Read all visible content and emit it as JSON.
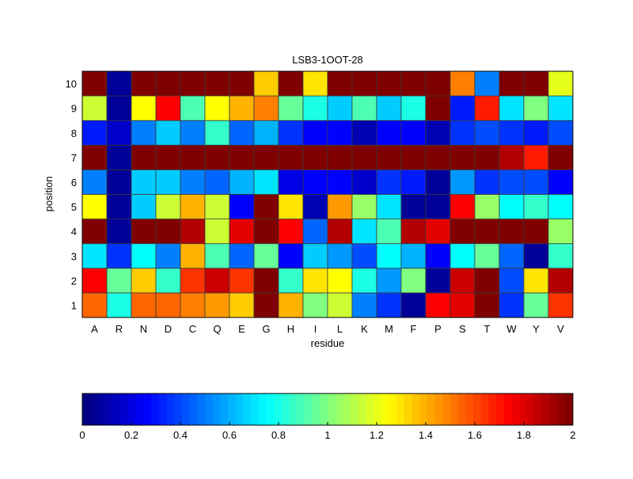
{
  "chart_data": {
    "type": "heatmap",
    "title": "LSB3-1OOT-28",
    "xlabel": "residue",
    "ylabel": "position",
    "colormap": "jet",
    "clim": [
      0,
      2
    ],
    "x_categories": [
      "A",
      "R",
      "N",
      "D",
      "C",
      "Q",
      "E",
      "G",
      "H",
      "I",
      "L",
      "K",
      "M",
      "F",
      "P",
      "S",
      "T",
      "W",
      "Y",
      "V"
    ],
    "y_categories": [
      "1",
      "2",
      "3",
      "4",
      "5",
      "6",
      "7",
      "8",
      "9",
      "10"
    ],
    "values": [
      [
        1.55,
        0.8,
        1.55,
        1.55,
        1.5,
        1.45,
        1.35,
        2,
        1.4,
        1.0,
        1.15,
        0.5,
        0.35,
        0.05,
        1.75,
        1.8,
        2,
        0.35,
        0.95,
        1.65
      ],
      [
        1.75,
        0.95,
        1.35,
        0.85,
        1.65,
        1.85,
        1.65,
        2,
        0.85,
        1.3,
        1.25,
        0.8,
        0.55,
        1.0,
        0.05,
        1.85,
        2,
        0.4,
        1.3,
        1.9
      ],
      [
        0.7,
        0.35,
        0.75,
        0.5,
        1.4,
        0.9,
        0.45,
        0.95,
        0.25,
        0.65,
        0.55,
        0.4,
        0.75,
        0.6,
        0.25,
        0.75,
        0.95,
        0.45,
        0.05,
        0.85
      ],
      [
        2,
        0.05,
        2,
        2,
        1.9,
        1.15,
        1.8,
        2,
        1.75,
        0.45,
        1.9,
        0.7,
        0.9,
        1.9,
        1.8,
        2,
        2,
        2,
        2,
        1.05
      ],
      [
        1.25,
        0.05,
        0.65,
        1.15,
        1.4,
        1.15,
        0.25,
        2,
        1.3,
        0.1,
        1.45,
        1.05,
        0.7,
        0.05,
        0.05,
        1.75,
        1.05,
        0.75,
        0.85,
        0.75
      ],
      [
        0.5,
        0.05,
        0.65,
        0.65,
        0.5,
        0.45,
        0.6,
        0.7,
        0.2,
        0.25,
        0.25,
        0.15,
        0.35,
        0.3,
        0.05,
        0.55,
        0.35,
        0.4,
        0.4,
        0.25
      ],
      [
        2,
        0.05,
        2,
        2,
        2,
        2,
        2,
        2,
        2,
        2,
        2,
        2,
        2,
        2,
        2,
        2,
        2,
        1.9,
        1.7,
        2
      ],
      [
        0.3,
        0.15,
        0.5,
        0.65,
        0.5,
        0.85,
        0.45,
        0.6,
        0.35,
        0.25,
        0.25,
        0.1,
        0.25,
        0.25,
        0.1,
        0.35,
        0.4,
        0.35,
        0.3,
        0.4
      ],
      [
        1.15,
        0.05,
        1.25,
        1.75,
        0.9,
        1.25,
        1.4,
        1.5,
        0.95,
        0.8,
        0.65,
        0.9,
        0.65,
        0.8,
        2,
        0.3,
        1.7,
        0.7,
        1.0,
        0.7
      ],
      [
        2,
        0.05,
        2,
        2,
        2,
        2,
        2,
        1.35,
        2,
        1.3,
        2,
        2,
        2,
        2,
        2,
        1.5,
        0.5,
        2,
        2,
        1.2
      ]
    ],
    "colorbar": {
      "ticks": [
        "0",
        "0.2",
        "0.4",
        "0.6",
        "0.8",
        "1",
        "1.2",
        "1.4",
        "1.6",
        "1.8",
        "2"
      ],
      "placement": "bottom"
    }
  }
}
